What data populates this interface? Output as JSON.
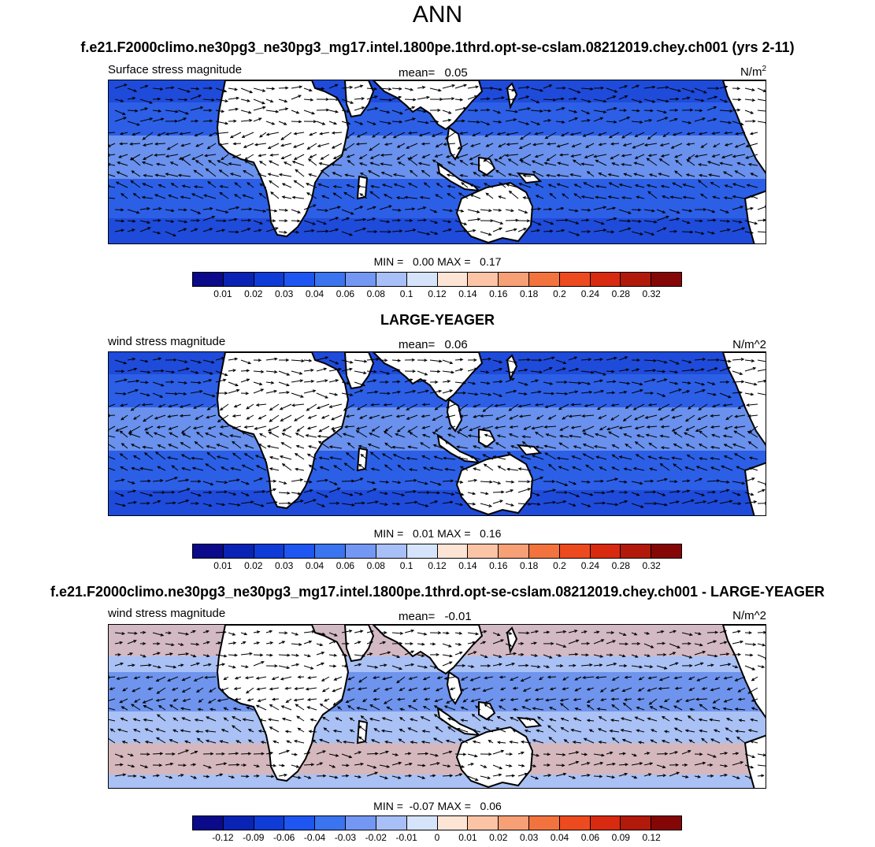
{
  "main_title": "ANN",
  "panels": [
    {
      "title": "f.e21.F2000climo.ne30pg3_ne30pg3_mg17.intel.1800pe.1thrd.opt-se-cslam.08212019.chey.ch001 (yrs 2-11)",
      "left_label": "Surface stress magnitude",
      "mean_label": "mean=",
      "mean_value": "0.05",
      "units": "N/m",
      "units_sup": "2",
      "minmax": "MIN =   0.00 MAX =   0.17",
      "colorbar": {
        "colors": [
          "#0a0a8a",
          "#0a23b4",
          "#0f3bd6",
          "#1f55f0",
          "#3b74ef",
          "#7397f3",
          "#a8c0f7",
          "#d6e4fb",
          "#fde5d6",
          "#fcc4a6",
          "#f79f75",
          "#f3733f",
          "#ee4a1f",
          "#d82a10",
          "#b1190b",
          "#850606"
        ],
        "ticks": [
          "0.01",
          "0.02",
          "0.03",
          "0.04",
          "0.06",
          "0.08",
          "0.1",
          "0.12",
          "0.14",
          "0.16",
          "0.18",
          "0.2",
          "0.24",
          "0.28",
          "0.32"
        ]
      }
    },
    {
      "title": "LARGE-YEAGER",
      "left_label": "wind stress magnitude",
      "mean_label": "mean=",
      "mean_value": "0.06",
      "units": "N/m^2",
      "units_sup": "",
      "minmax": "MIN =   0.01 MAX =   0.16",
      "colorbar": {
        "colors": [
          "#0a0a8a",
          "#0a23b4",
          "#0f3bd6",
          "#1f55f0",
          "#3b74ef",
          "#7397f3",
          "#a8c0f7",
          "#d6e4fb",
          "#fde5d6",
          "#fcc4a6",
          "#f79f75",
          "#f3733f",
          "#ee4a1f",
          "#d82a10",
          "#b1190b",
          "#850606"
        ],
        "ticks": [
          "0.01",
          "0.02",
          "0.03",
          "0.04",
          "0.06",
          "0.08",
          "0.1",
          "0.12",
          "0.14",
          "0.16",
          "0.18",
          "0.2",
          "0.24",
          "0.28",
          "0.32"
        ]
      }
    },
    {
      "title": "f.e21.F2000climo.ne30pg3_ne30pg3_mg17.intel.1800pe.1thrd.opt-se-cslam.08212019.chey.ch001 - LARGE-YEAGER",
      "left_label": "wind stress magnitude",
      "mean_label": "mean=",
      "mean_value": "-0.01",
      "units": "N/m^2",
      "units_sup": "",
      "minmax": "MIN =  -0.07 MAX =   0.06",
      "colorbar": {
        "colors": [
          "#0a0a8a",
          "#0a23b4",
          "#0f3bd6",
          "#1f55f0",
          "#3b74ef",
          "#7397f3",
          "#a8c0f7",
          "#d6e4fb",
          "#fde5d6",
          "#fcc4a6",
          "#f79f75",
          "#f3733f",
          "#ee4a1f",
          "#d82a10",
          "#b1190b",
          "#850606"
        ],
        "ticks": [
          "-0.12",
          "-0.09",
          "-0.06",
          "-0.04",
          "-0.03",
          "-0.02",
          "-0.01",
          "0",
          "0.01",
          "0.02",
          "0.03",
          "0.04",
          "0.06",
          "0.09",
          "0.12"
        ]
      }
    }
  ],
  "map_colors": {
    "ocean_1": "#2c5fe6",
    "ocean_2": "#1e49d8",
    "ocean_3": "#9db9f2",
    "land": "#ffffff",
    "ocean_diff": "#a9c1f4",
    "diff_pos": "#f4b39a",
    "diff_neg": "#3e6fe8"
  }
}
